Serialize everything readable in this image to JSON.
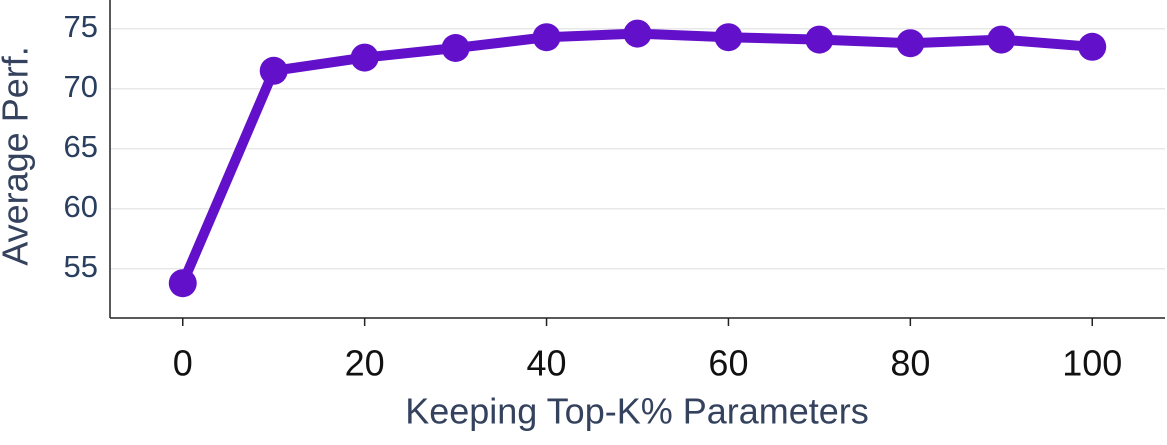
{
  "chart_data": {
    "type": "line",
    "x_label": "Keeping Top-K% Parameters",
    "y_label": "Average Perf.",
    "x": [
      0,
      10,
      20,
      30,
      40,
      50,
      60,
      70,
      80,
      90,
      100
    ],
    "series": [
      {
        "color": "#6210c9",
        "values": [
          53.8,
          71.5,
          72.6,
          73.4,
          74.3,
          74.6,
          74.3,
          74.1,
          73.8,
          74.1,
          73.5
        ]
      }
    ],
    "xlim": [
      -8,
      108
    ],
    "xticks": [
      0,
      20,
      40,
      60,
      80,
      100
    ],
    "ylim": [
      50.9,
      77.4
    ],
    "yticks": [
      55,
      60,
      65,
      70,
      75
    ],
    "grid": true
  }
}
